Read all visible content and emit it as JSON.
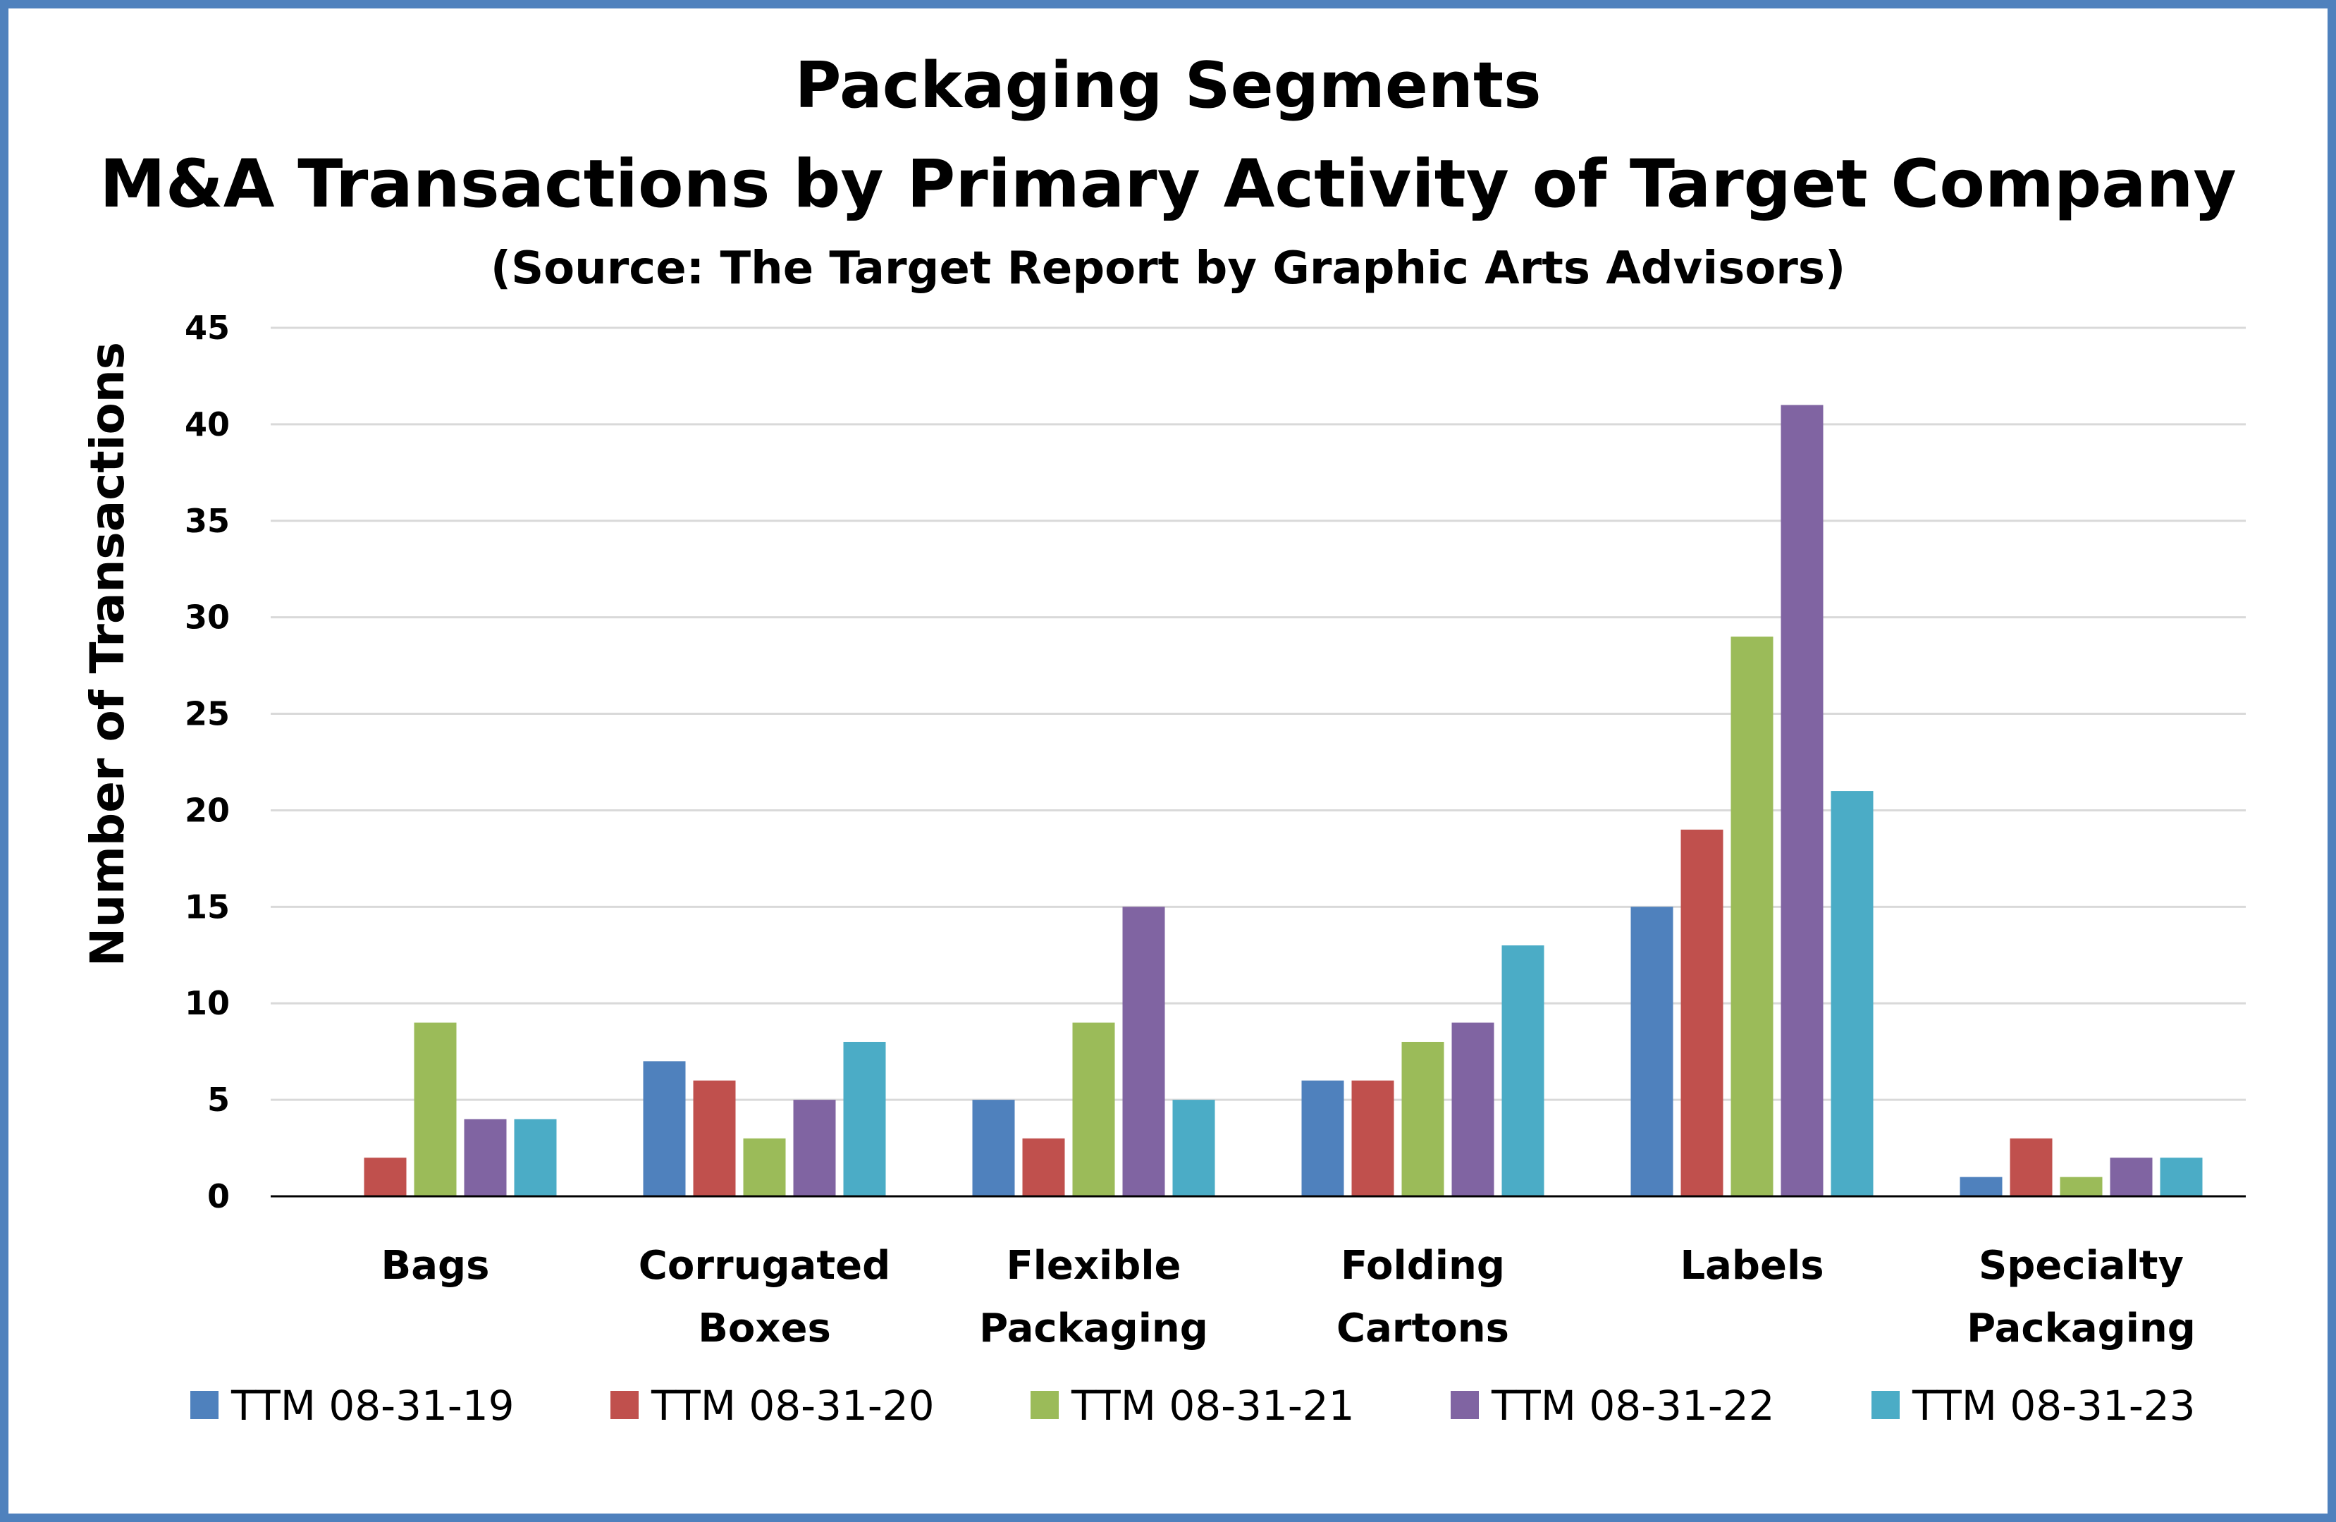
{
  "chart_data": {
    "type": "bar",
    "title": "Packaging Segments",
    "subtitle": "M&A Transactions by Primary Activity of Target Company",
    "source": "(Source: The Target Report by Graphic Arts Advisors)",
    "xlabel": "",
    "ylabel": "Number of Transactions",
    "ylim": [
      0,
      45
    ],
    "yticks": [
      0,
      5,
      10,
      15,
      20,
      25,
      30,
      35,
      40,
      45
    ],
    "grid": true,
    "legend_position": "bottom",
    "categories": [
      [
        "Bags"
      ],
      [
        "Corrugated",
        "Boxes"
      ],
      [
        "Flexible",
        "Packaging"
      ],
      [
        "Folding",
        "Cartons"
      ],
      [
        "Labels"
      ],
      [
        "Specialty",
        "Packaging"
      ]
    ],
    "series": [
      {
        "name": "TTM 08-31-19",
        "color": "#4F81BD",
        "values": [
          0,
          7,
          5,
          6,
          15,
          1
        ]
      },
      {
        "name": "TTM 08-31-20",
        "color": "#C0504D",
        "values": [
          2,
          6,
          3,
          6,
          19,
          3
        ]
      },
      {
        "name": "TTM 08-31-21",
        "color": "#9BBB59",
        "values": [
          9,
          3,
          9,
          8,
          29,
          1
        ]
      },
      {
        "name": "TTM 08-31-22",
        "color": "#8064A2",
        "values": [
          4,
          5,
          15,
          9,
          41,
          2
        ]
      },
      {
        "name": "TTM 08-31-23",
        "color": "#4BACC6",
        "values": [
          4,
          8,
          5,
          13,
          21,
          2
        ]
      }
    ]
  }
}
